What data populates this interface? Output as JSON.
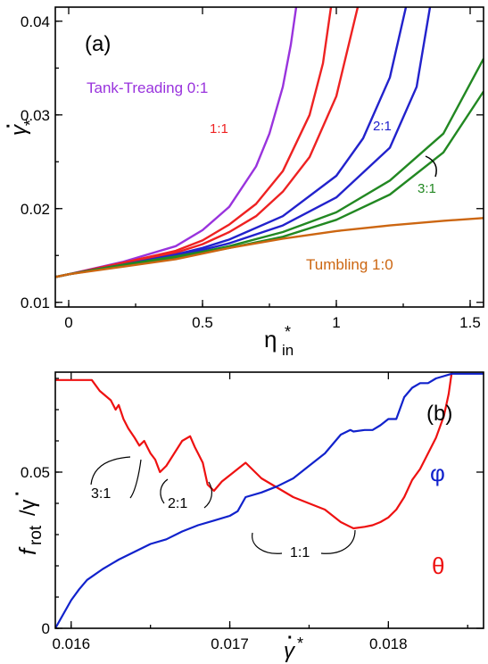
{
  "chart_data": [
    {
      "type": "line",
      "panel_label": "(a)",
      "xlabel": "η*in",
      "ylabel": "γ̇*",
      "xlim": [
        -0.05,
        1.55
      ],
      "ylim": [
        0.0095,
        0.0415
      ],
      "xticks": [
        0,
        0.5,
        1,
        1.5
      ],
      "xtick_labels": [
        "0",
        "0.5",
        "1",
        "1.5"
      ],
      "yticks": [
        0.01,
        0.02,
        0.03,
        0.04
      ],
      "ytick_labels": [
        "0.01",
        "0.02",
        "0.03",
        "0.04"
      ],
      "grid": false,
      "series": [
        {
          "name": "Tank-Treading 0:1",
          "color": "#9933dd",
          "x": [
            -0.05,
            0,
            0.2,
            0.4,
            0.5,
            0.6,
            0.7,
            0.75,
            0.8,
            0.83,
            0.85
          ],
          "y": [
            0.0127,
            0.013,
            0.0143,
            0.016,
            0.0177,
            0.0202,
            0.0245,
            0.028,
            0.033,
            0.0375,
            0.0415
          ]
        },
        {
          "name": "1:1",
          "color": "#ee2222",
          "x": [
            -0.05,
            0,
            0.2,
            0.4,
            0.5,
            0.6,
            0.7,
            0.8,
            0.9,
            0.95,
            0.98
          ],
          "y": [
            0.0127,
            0.013,
            0.0142,
            0.0155,
            0.0166,
            0.0183,
            0.0205,
            0.024,
            0.03,
            0.0355,
            0.0415
          ]
        },
        {
          "name": "1:1",
          "color": "#ee2222",
          "x": [
            -0.05,
            0,
            0.2,
            0.4,
            0.5,
            0.6,
            0.7,
            0.8,
            0.9,
            1.0,
            1.08
          ],
          "y": [
            0.0127,
            0.013,
            0.0141,
            0.0153,
            0.0162,
            0.0175,
            0.0192,
            0.0218,
            0.0255,
            0.032,
            0.0415
          ]
        },
        {
          "name": "2:1",
          "color": "#2222cc",
          "x": [
            -0.05,
            0,
            0.2,
            0.4,
            0.5,
            0.6,
            0.8,
            1.0,
            1.1,
            1.2,
            1.26
          ],
          "y": [
            0.0127,
            0.013,
            0.014,
            0.0151,
            0.0158,
            0.0167,
            0.0192,
            0.0235,
            0.0275,
            0.034,
            0.0415
          ]
        },
        {
          "name": "2:1",
          "color": "#2222cc",
          "x": [
            -0.05,
            0,
            0.2,
            0.4,
            0.5,
            0.6,
            0.8,
            1.0,
            1.2,
            1.3,
            1.35
          ],
          "y": [
            0.0127,
            0.013,
            0.014,
            0.015,
            0.0156,
            0.0163,
            0.0182,
            0.0212,
            0.0265,
            0.033,
            0.0415
          ]
        },
        {
          "name": "3:1",
          "color": "#228822",
          "x": [
            -0.05,
            0,
            0.2,
            0.4,
            0.5,
            0.6,
            0.8,
            1.0,
            1.2,
            1.4,
            1.55
          ],
          "y": [
            0.0127,
            0.013,
            0.014,
            0.0149,
            0.0154,
            0.016,
            0.0175,
            0.0196,
            0.023,
            0.028,
            0.036
          ]
        },
        {
          "name": "3:1",
          "color": "#228822",
          "x": [
            -0.05,
            0,
            0.2,
            0.4,
            0.5,
            0.6,
            0.8,
            1.0,
            1.2,
            1.4,
            1.55
          ],
          "y": [
            0.0127,
            0.013,
            0.0139,
            0.0148,
            0.0153,
            0.0158,
            0.017,
            0.0188,
            0.0215,
            0.026,
            0.0325
          ]
        },
        {
          "name": "Tumbling 1:0",
          "color": "#cc6611",
          "x": [
            -0.05,
            0,
            0.2,
            0.4,
            0.6,
            0.8,
            1.0,
            1.2,
            1.4,
            1.55
          ],
          "y": [
            0.0127,
            0.013,
            0.0138,
            0.0146,
            0.0158,
            0.0168,
            0.0176,
            0.0182,
            0.0187,
            0.019
          ]
        }
      ],
      "annotations": [
        {
          "text": "Tank-Treading 0:1",
          "color": "#9933dd"
        },
        {
          "text": "1:1",
          "color": "#ee2222"
        },
        {
          "text": "2:1",
          "color": "#2222cc"
        },
        {
          "text": "3:1",
          "color": "#228822"
        },
        {
          "text": "Tumbling 1:0",
          "color": "#cc6611"
        }
      ]
    },
    {
      "type": "line",
      "panel_label": "(b)",
      "xlabel": "γ̇*",
      "ylabel": "frot /γ̇",
      "xlim": [
        0.0159,
        0.0186
      ],
      "ylim": [
        0,
        0.082
      ],
      "xticks": [
        0.016,
        0.017,
        0.018
      ],
      "xtick_labels": [
        "0.016",
        "0.017",
        "0.018"
      ],
      "yticks": [
        0,
        0.05
      ],
      "ytick_labels": [
        "0",
        "0.05"
      ],
      "grid": false,
      "series": [
        {
          "name": "θ",
          "color": "#ee1111",
          "x": [
            0.0159,
            0.01613,
            0.01618,
            0.01625,
            0.01628,
            0.0163,
            0.01633,
            0.01636,
            0.0164,
            0.01643,
            0.01646,
            0.01648,
            0.0165,
            0.01653,
            0.01656,
            0.0166,
            0.01665,
            0.0167,
            0.01675,
            0.01678,
            0.0168,
            0.01683,
            0.01686,
            0.0169,
            0.01695,
            0.017,
            0.01705,
            0.0171,
            0.0172,
            0.0173,
            0.0174,
            0.0175,
            0.0176,
            0.0177,
            0.01776,
            0.01778,
            0.01785,
            0.0179,
            0.01795,
            0.018,
            0.01805,
            0.0181,
            0.01815,
            0.0182,
            0.01825,
            0.0183,
            0.01835,
            0.01838,
            0.0184
          ],
          "y": [
            0.0795,
            0.0795,
            0.076,
            0.073,
            0.07,
            0.0715,
            0.067,
            0.064,
            0.061,
            0.0585,
            0.06,
            0.058,
            0.056,
            0.054,
            0.05,
            0.052,
            0.056,
            0.06,
            0.0615,
            0.058,
            0.056,
            0.053,
            0.046,
            0.044,
            0.047,
            0.049,
            0.051,
            0.053,
            0.048,
            0.045,
            0.042,
            0.04,
            0.038,
            0.034,
            0.0325,
            0.032,
            0.0325,
            0.033,
            0.034,
            0.0355,
            0.038,
            0.042,
            0.0475,
            0.051,
            0.056,
            0.061,
            0.068,
            0.075,
            0.082
          ]
        },
        {
          "name": "φ",
          "color": "#1122cc",
          "x": [
            0.0159,
            0.016,
            0.01605,
            0.0161,
            0.0162,
            0.0163,
            0.0164,
            0.0165,
            0.0166,
            0.0167,
            0.0168,
            0.0169,
            0.017,
            0.01705,
            0.0171,
            0.0172,
            0.0173,
            0.0174,
            0.0175,
            0.0176,
            0.0177,
            0.01776,
            0.01778,
            0.01785,
            0.0179,
            0.01795,
            0.018,
            0.01805,
            0.0181,
            0.01815,
            0.0182,
            0.01825,
            0.0183,
            0.0184,
            0.0186
          ],
          "y": [
            0.0,
            0.009,
            0.0125,
            0.0155,
            0.019,
            0.022,
            0.0245,
            0.027,
            0.0285,
            0.031,
            0.033,
            0.0345,
            0.036,
            0.0375,
            0.042,
            0.0435,
            0.0455,
            0.048,
            0.052,
            0.056,
            0.062,
            0.0635,
            0.063,
            0.0635,
            0.0635,
            0.065,
            0.067,
            0.067,
            0.074,
            0.077,
            0.0785,
            0.0785,
            0.08,
            0.0815,
            0.0815
          ]
        }
      ],
      "annotations": [
        {
          "text": "3:1",
          "color": "#000000"
        },
        {
          "text": "2:1",
          "color": "#000000"
        },
        {
          "text": "1:1",
          "color": "#000000"
        },
        {
          "text": "φ",
          "color": "#1122cc"
        },
        {
          "text": "θ",
          "color": "#ee1111"
        }
      ]
    }
  ]
}
